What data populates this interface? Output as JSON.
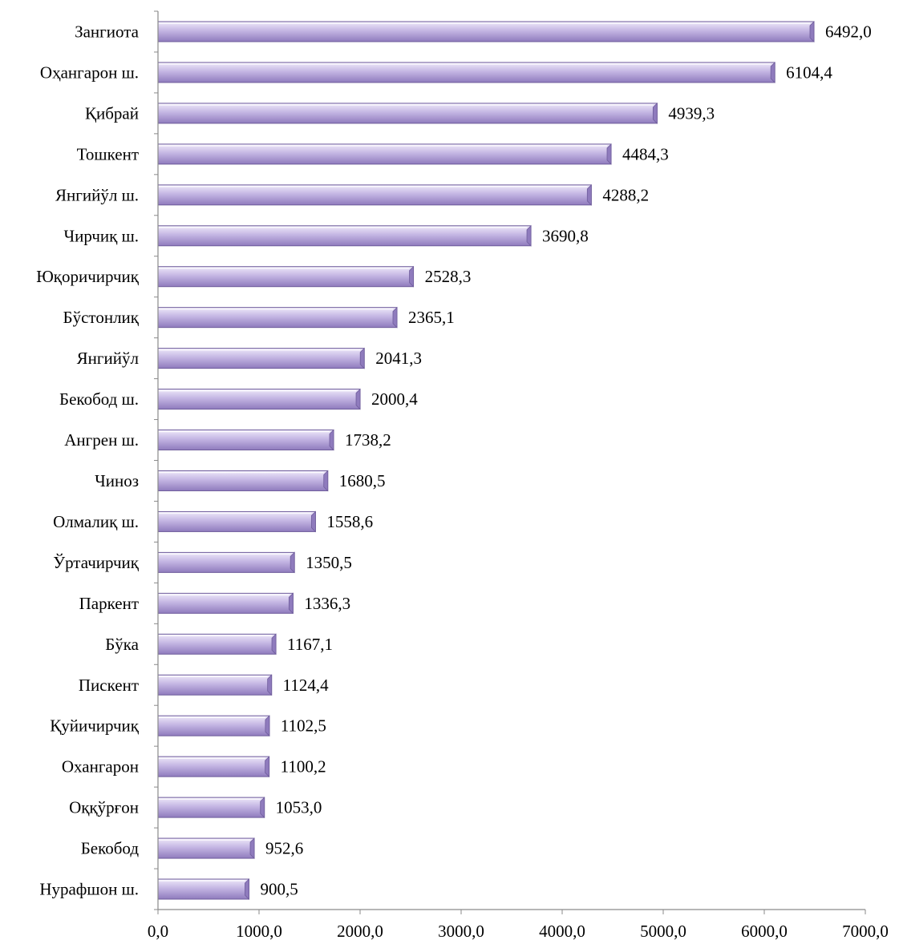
{
  "chart_data": {
    "type": "bar",
    "orientation": "horizontal",
    "title": "",
    "xlabel": "",
    "ylabel": "",
    "categories": [
      "Зангиота",
      "Оҳангарон ш.",
      "Қибрай",
      "Тошкент",
      "Янгийўл ш.",
      "Чирчиқ ш.",
      "Юқоричирчиқ",
      "Бўстонлиқ",
      "Янгийўл",
      "Бекобод ш.",
      "Ангрен ш.",
      "Чиноз",
      "Олмалиқ ш.",
      "Ўртачирчиқ",
      "Паркент",
      "Бўка",
      "Пискент",
      "Қуйичирчиқ",
      "Охангарон",
      "Оққўрғон",
      "Бекобод",
      "Нурафшон ш."
    ],
    "values": [
      6492.0,
      6104.4,
      4939.3,
      4484.3,
      4288.2,
      3690.8,
      2528.3,
      2365.1,
      2041.3,
      2000.4,
      1738.2,
      1680.5,
      1558.6,
      1350.5,
      1336.3,
      1167.1,
      1124.4,
      1102.5,
      1100.2,
      1053.0,
      952.6,
      900.5
    ],
    "value_labels": [
      "6492,0",
      "6104,4",
      "4939,3",
      "4484,3",
      "4288,2",
      "3690,8",
      "2528,3",
      "2365,1",
      "2041,3",
      "2000,4",
      "1738,2",
      "1680,5",
      "1558,6",
      "1350,5",
      "1336,3",
      "1167,1",
      "1124,4",
      "1102,5",
      "1100,2",
      "1053,0",
      "952,6",
      "900,5"
    ],
    "xlim": [
      0,
      7000
    ],
    "xticks": [
      0,
      1000,
      2000,
      3000,
      4000,
      5000,
      6000,
      7000
    ],
    "xtick_labels": [
      "0,0",
      "1000,0",
      "2000,0",
      "3000,0",
      "4000,0",
      "5000,0",
      "6000,0",
      "7000,0"
    ],
    "grid": false,
    "legend": "none",
    "colors": {
      "bar_face": "#c4b6e3",
      "bar_light": "#efeafa",
      "bar_dark": "#8f7bbd",
      "bar_edge": "#6f5d9c",
      "axis": "#8a8a8a"
    }
  }
}
